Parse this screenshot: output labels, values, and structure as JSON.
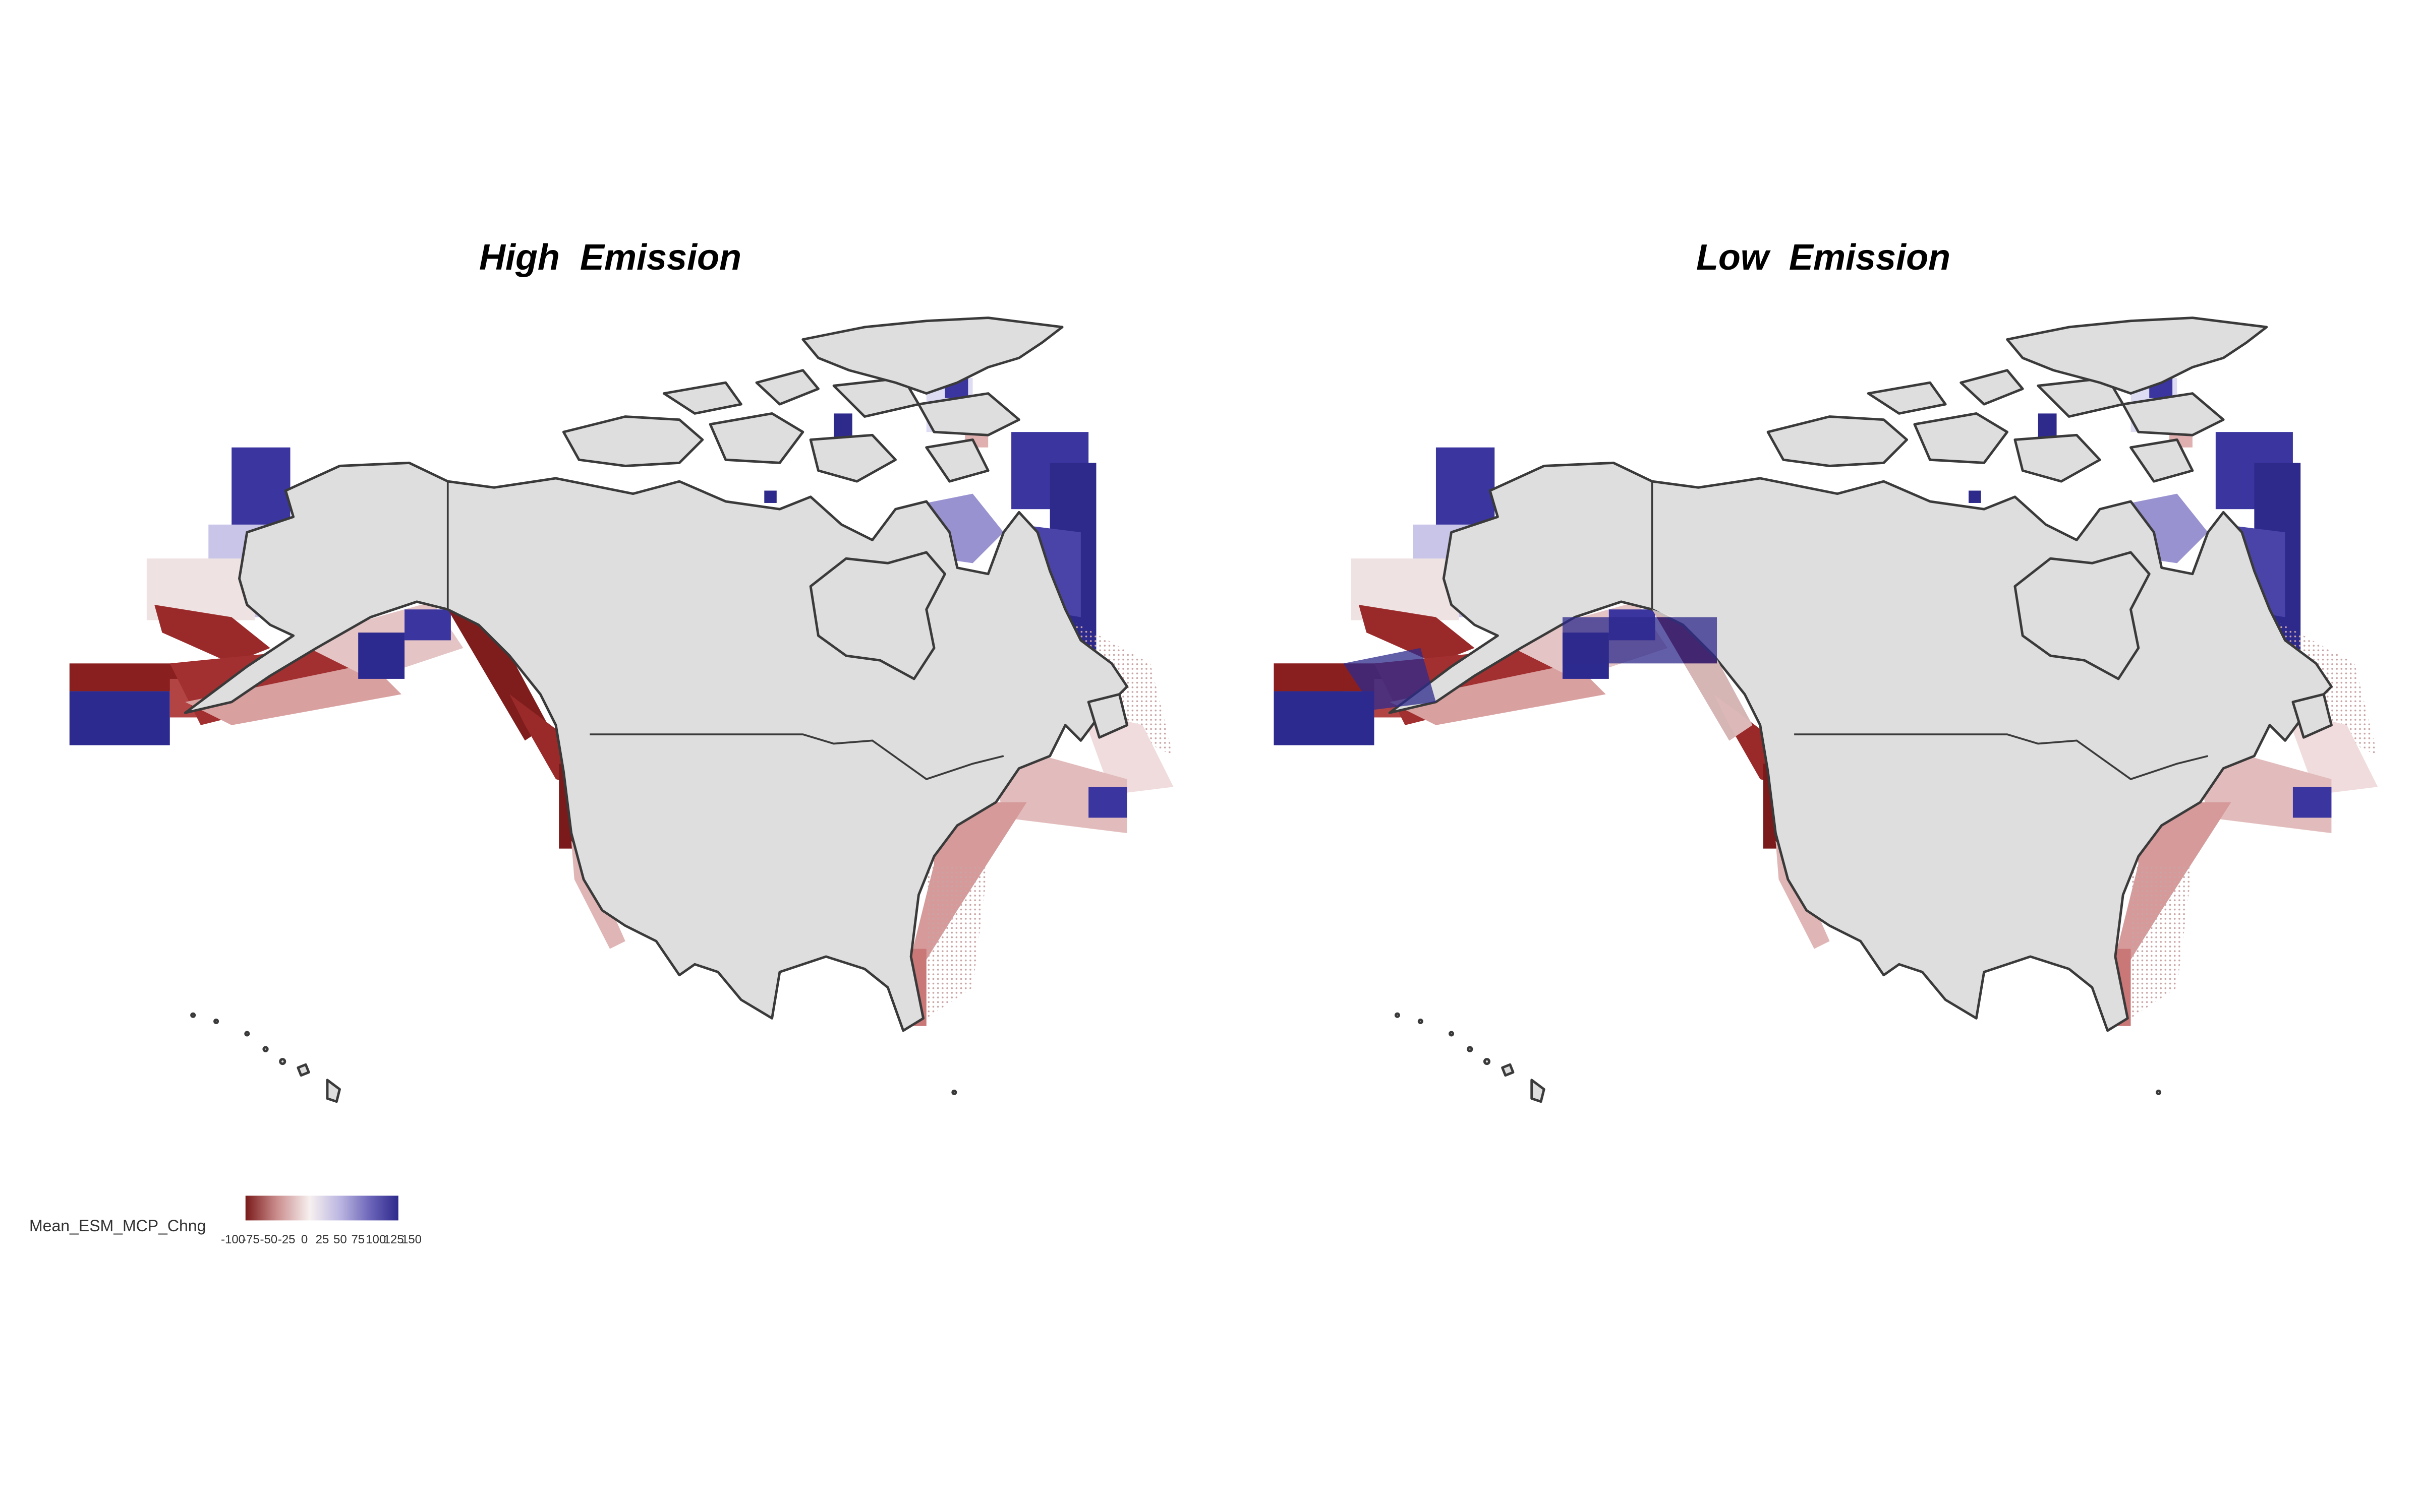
{
  "panels": [
    {
      "id": "high",
      "title": "High  Emission"
    },
    {
      "id": "low",
      "title": "Low  Emission"
    }
  ],
  "legend": {
    "title": "Mean_ESM_MCP_Chng",
    "tick_labels": [
      "-100",
      "-75",
      "-50",
      "-25",
      "0",
      "25",
      "50",
      "75",
      "100",
      "125",
      "150"
    ],
    "colors": {
      "low": "#7a1a1a",
      "mid": "#f7f0f0",
      "high": "#2e2a8c"
    }
  },
  "colors": {
    "land": "#dedede",
    "coast": "#3a3a3a",
    "background": "#ffffff"
  }
}
